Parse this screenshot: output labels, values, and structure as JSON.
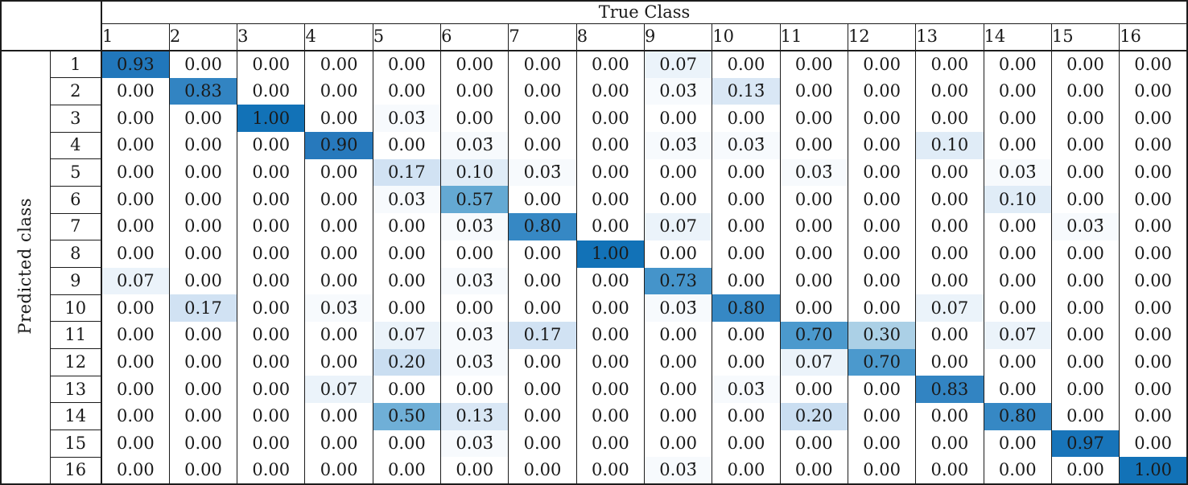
{
  "chart_data": {
    "type": "heatmap",
    "x_axis_label": "True Class",
    "y_axis_label": "Predicted class",
    "x_categories": [
      "1",
      "2",
      "3",
      "4",
      "5",
      "6",
      "7",
      "8",
      "9",
      "10",
      "11",
      "12",
      "13",
      "14",
      "15",
      "16"
    ],
    "y_categories": [
      "1",
      "2",
      "3",
      "4",
      "5",
      "6",
      "7",
      "8",
      "9",
      "10",
      "11",
      "12",
      "13",
      "14",
      "15",
      "16"
    ],
    "value_range": [
      0,
      1
    ],
    "cells": [
      [
        "0.93",
        "0.00",
        "0.00",
        "0.00",
        "0.00",
        "0.00",
        "0.00",
        "0.00",
        "0.07",
        "0.00",
        "0.00",
        "0.00",
        "0.00",
        "0.00",
        "0.00",
        "0.00"
      ],
      [
        "0.00",
        "0.83",
        "0.00",
        "0.00",
        "0.00",
        "0.00",
        "0.00",
        "0.00",
        "0.03̄",
        "0.13̄",
        "0.00",
        "0.00",
        "0.00",
        "0.00",
        "0.00",
        "0.00"
      ],
      [
        "0.00",
        "0.00",
        "1.00",
        "0.00",
        "0.03̄",
        "0.00",
        "0.00",
        "0.00",
        "0.00",
        "0.00",
        "0.00",
        "0.00",
        "0.00",
        "0.00",
        "0.00",
        "0.00"
      ],
      [
        "0.00",
        "0.00",
        "0.00",
        "0.90",
        "0.00",
        "0.03̄",
        "0.00",
        "0.00",
        "0.03̄",
        "0.03̄",
        "0.00",
        "0.00",
        "0.10",
        "0.00",
        "0.00",
        "0.00"
      ],
      [
        "0.00",
        "0.00",
        "0.00",
        "0.00",
        "0.17",
        "0.10",
        "0.03̄",
        "0.00",
        "0.00",
        "0.00",
        "0.03̄",
        "0.00",
        "0.00",
        "0.03̄",
        "0.00",
        "0.00"
      ],
      [
        "0.00",
        "0.00",
        "0.00",
        "0.00",
        "0.03̄",
        "0.57",
        "0.00",
        "0.00",
        "0.00",
        "0.00",
        "0.00",
        "0.00",
        "0.00",
        "0.10",
        "0.00",
        "0.00"
      ],
      [
        "0.00",
        "0.00",
        "0.00",
        "0.00",
        "0.00",
        "0.03̄",
        "0.80",
        "0.00",
        "0.07",
        "0.00",
        "0.00",
        "0.00",
        "0.00",
        "0.00",
        "0.03̄",
        "0.00"
      ],
      [
        "0.00",
        "0.00",
        "0.00",
        "0.00",
        "0.00",
        "0.00",
        "0.00",
        "1.00",
        "0.00",
        "0.00",
        "0.00",
        "0.00",
        "0.00",
        "0.00",
        "0.00",
        "0.00"
      ],
      [
        "0.07",
        "0.00",
        "0.00",
        "0.00",
        "0.00",
        "0.03̄",
        "0.00",
        "0.00",
        "0.73",
        "0.00",
        "0.00",
        "0.00",
        "0.00",
        "0.00",
        "0.00",
        "0.00"
      ],
      [
        "0.00",
        "0.17",
        "0.00",
        "0.03̄",
        "0.00",
        "0.00",
        "0.00",
        "0.00",
        "0.03̄",
        "0.80",
        "0.00",
        "0.00",
        "0.07",
        "0.00",
        "0.00",
        "0.00"
      ],
      [
        "0.00",
        "0.00",
        "0.00",
        "0.00",
        "0.07",
        "0.03̄",
        "0.17",
        "0.00",
        "0.00",
        "0.00",
        "0.70",
        "0.30",
        "0.00",
        "0.07",
        "0.00",
        "0.00"
      ],
      [
        "0.00",
        "0.00",
        "0.00",
        "0.00",
        "0.20",
        "0.03̄",
        "0.00",
        "0.00",
        "0.00",
        "0.00",
        "0.07",
        "0.70",
        "0.00",
        "0.00",
        "0.00",
        "0.00"
      ],
      [
        "0.00",
        "0.00",
        "0.00",
        "0.07",
        "0.00",
        "0.00",
        "0.00",
        "0.00",
        "0.00",
        "0.03̄",
        "0.00",
        "0.00",
        "0.83",
        "0.00",
        "0.00",
        "0.00"
      ],
      [
        "0.00",
        "0.00",
        "0.00",
        "0.00",
        "0.50",
        "0.13̄",
        "0.00",
        "0.00",
        "0.00",
        "0.00",
        "0.20",
        "0.00",
        "0.00",
        "0.80",
        "0.00",
        "0.00"
      ],
      [
        "0.00",
        "0.00",
        "0.00",
        "0.00",
        "0.00",
        "0.03̄",
        "0.00",
        "0.00",
        "0.00",
        "0.00",
        "0.00",
        "0.00",
        "0.00",
        "0.00",
        "0.97",
        "0.00"
      ],
      [
        "0.00",
        "0.00",
        "0.00",
        "0.00",
        "0.00",
        "0.00",
        "0.00",
        "0.00",
        "0.03̄",
        "0.00",
        "0.00",
        "0.00",
        "0.00",
        "0.00",
        "0.00",
        "1.00"
      ]
    ],
    "colormap": "Blues",
    "colormap_stops": [
      [
        0.0,
        "#ffffff"
      ],
      [
        0.05,
        "#f3f8fc"
      ],
      [
        0.1,
        "#e0ecf7"
      ],
      [
        0.2,
        "#cadef1"
      ],
      [
        0.3,
        "#abd0e6"
      ],
      [
        0.4,
        "#8dc0dd"
      ],
      [
        0.5,
        "#6fafd7"
      ],
      [
        0.6,
        "#5fa6d1"
      ],
      [
        0.7,
        "#4b99cd"
      ],
      [
        0.8,
        "#3688c4"
      ],
      [
        0.9,
        "#2779bc"
      ],
      [
        1.0,
        "#1272b7"
      ]
    ],
    "colors": {
      "border": "#1c1c1c",
      "text": "#1a1a1a",
      "max_cell": "#1272b7",
      "min_cell": "#ffffff"
    }
  }
}
